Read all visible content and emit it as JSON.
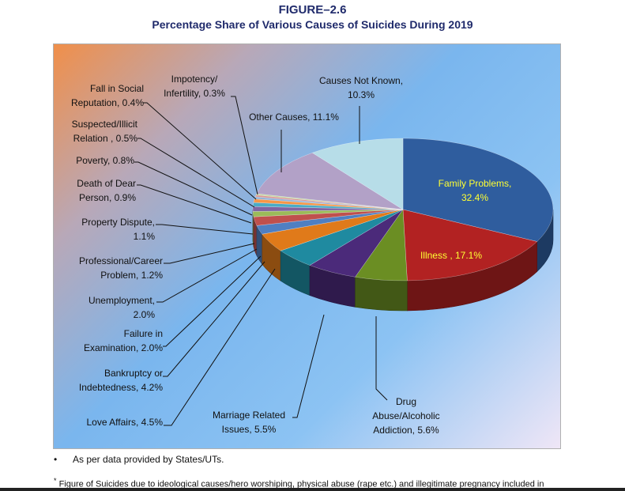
{
  "figure": {
    "number": "FIGURE–2.6",
    "title": "Percentage Share of Various Causes of Suicides During 2019"
  },
  "chart_data": {
    "type": "pie",
    "title": "Percentage Share of Various Causes of Suicides During 2019",
    "unit": "%",
    "slices": [
      {
        "label": "Family Problems,",
        "label2": "32.4%",
        "value": 32.4,
        "color": "#2f5d9e"
      },
      {
        "label": "Illness , 17.1%",
        "label2": "",
        "value": 17.1,
        "color": "#b22222"
      },
      {
        "label": "Drug",
        "label2": "Abuse/Alcoholic",
        "label3": "Addiction, 5.6%",
        "value": 5.6,
        "color": "#6b8e23"
      },
      {
        "label": "Marriage Related",
        "label2": "Issues, 5.5%",
        "value": 5.5,
        "color": "#4b2a7a"
      },
      {
        "label": "Love Affairs, 4.5%",
        "label2": "",
        "value": 4.5,
        "color": "#1f8aa0"
      },
      {
        "label": "Bankruptcy or",
        "label2": "Indebtedness, 4.2%",
        "value": 4.2,
        "color": "#e07a1a"
      },
      {
        "label": "Failure in",
        "label2": "Examination, 2.0%",
        "value": 2.0,
        "color": "#4f7fc2"
      },
      {
        "label": "Unemployment,",
        "label2": "2.0%",
        "value": 2.0,
        "color": "#c0504d"
      },
      {
        "label": "Professional/Career",
        "label2": "Problem, 1.2%",
        "value": 1.2,
        "color": "#9bbb59"
      },
      {
        "label": "Property Dispute,",
        "label2": "1.1%",
        "value": 1.1,
        "color": "#8064a2"
      },
      {
        "label": "Death of Dear",
        "label2": "Person, 0.9%",
        "value": 0.9,
        "color": "#4bacc6"
      },
      {
        "label": "Poverty, 0.8%",
        "label2": "",
        "value": 0.8,
        "color": "#f79646"
      },
      {
        "label": "Suspected/Illicit",
        "label2": "Relation , 0.5%",
        "value": 0.5,
        "color": "#95b3d7"
      },
      {
        "label": "Fall in Social",
        "label2": "Reputation, 0.4%",
        "value": 0.4,
        "color": "#d99694"
      },
      {
        "label": "Impotency/",
        "label2": "Infertility, 0.3%",
        "value": 0.3,
        "color": "#c3d69b"
      },
      {
        "label": "Other Causes, 11.1%",
        "label2": "",
        "value": 11.1,
        "color": "#b2a1c7"
      },
      {
        "label": "Causes Not Known,",
        "label2": "10.3%",
        "value": 10.3,
        "color": "#b7dde8"
      }
    ],
    "legend": "none"
  },
  "notes": {
    "bullet": "•",
    "source": "As per data provided by States/UTs.",
    "footnote_mark": "*",
    "footnote": "Figure of Suicides due to ideological causes/hero worshiping, physical abuse (rape etc.) and illegitimate pregnancy included in"
  }
}
